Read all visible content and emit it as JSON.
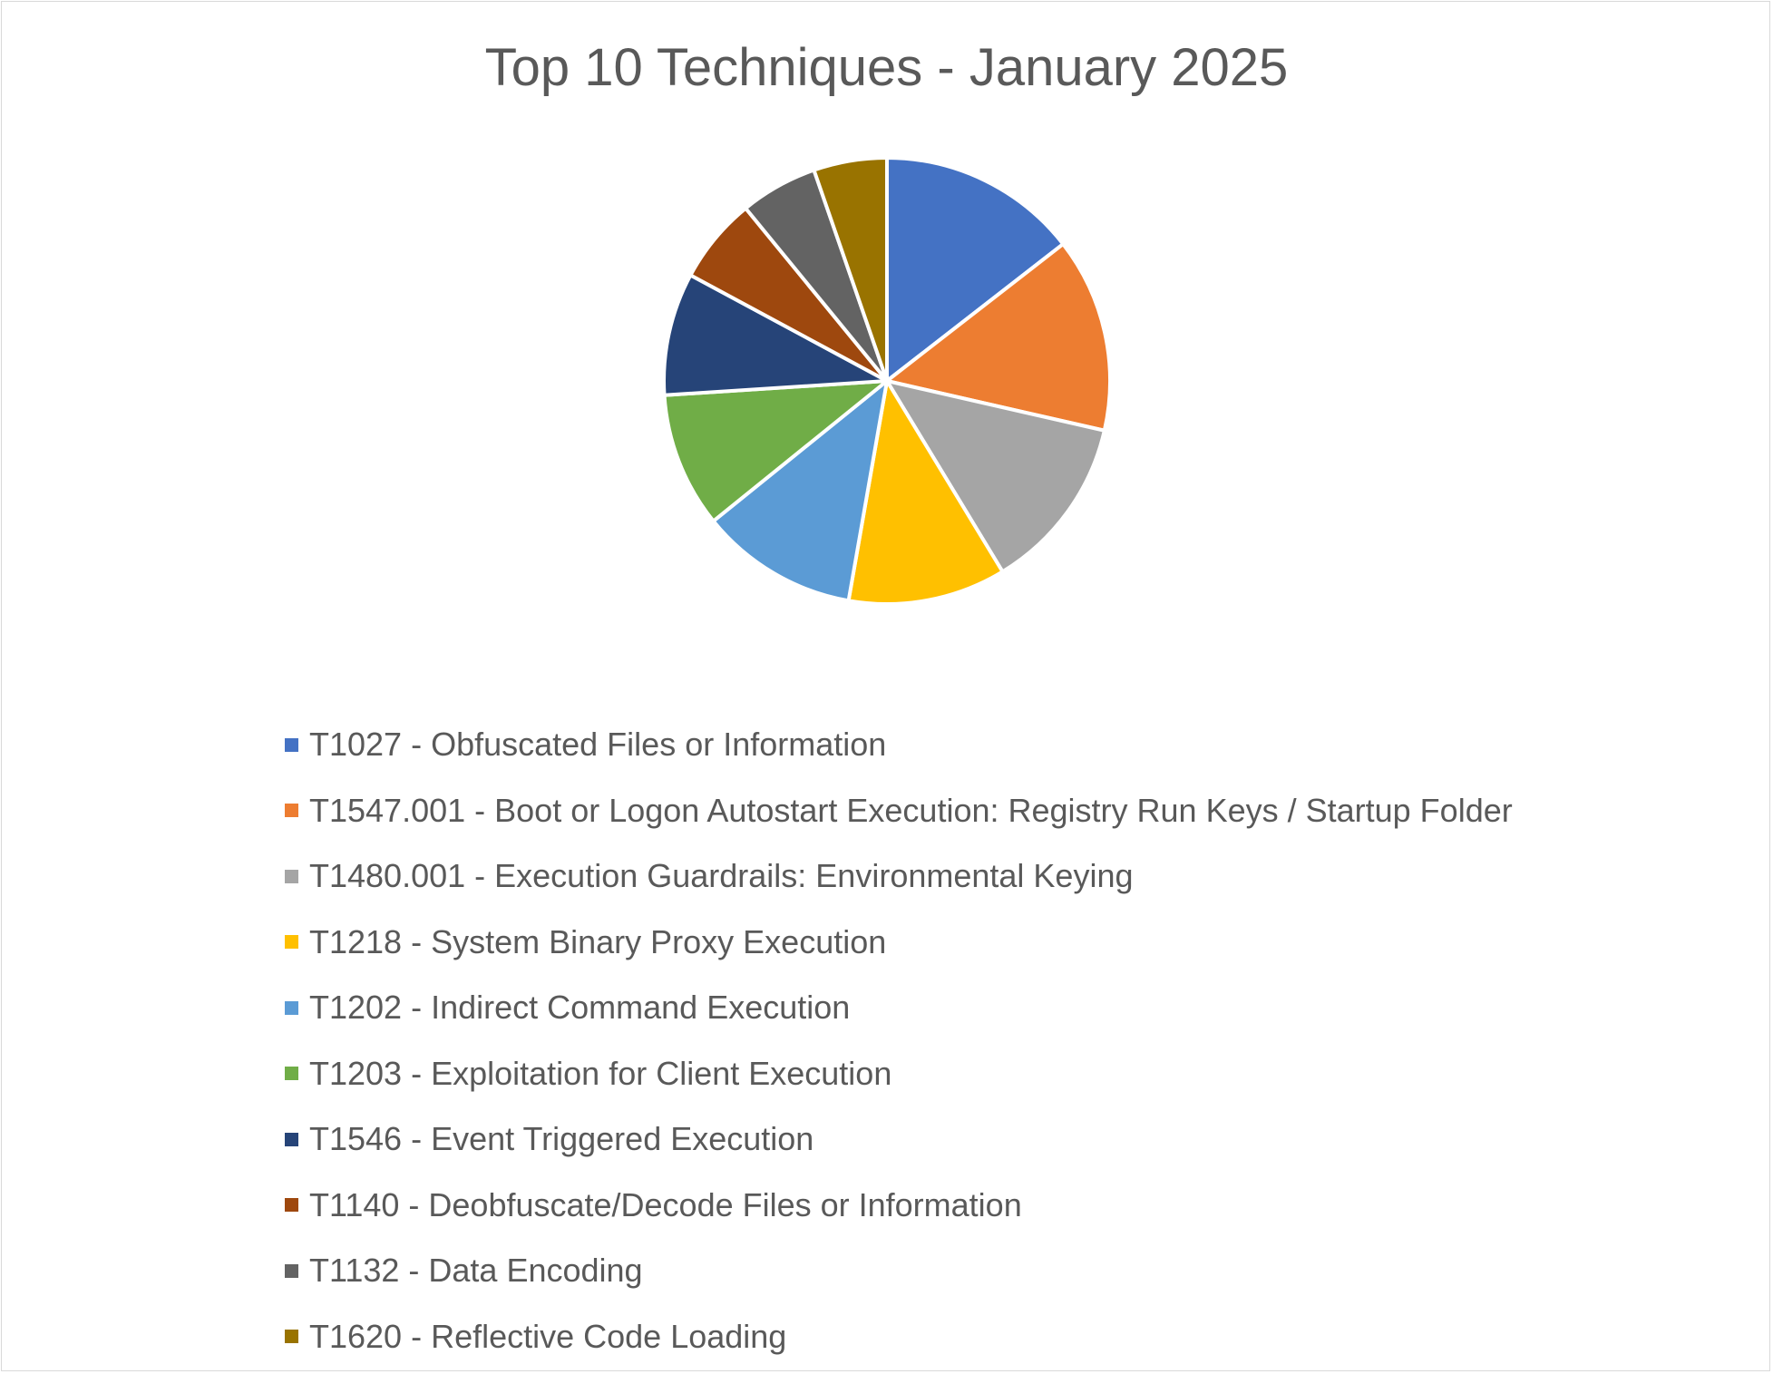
{
  "chart_data": {
    "type": "pie",
    "title": "Top 10 Techniques - January 2025",
    "categories": [
      "T1027 - Obfuscated Files or Information",
      "T1547.001 - Boot or Logon Autostart Execution: Registry Run Keys / Startup Folder",
      "T1480.001 - Execution Guardrails: Environmental Keying",
      "T1218 - System Binary Proxy Execution",
      "T1202 - Indirect Command Execution",
      "T1203 - Exploitation for Client Execution",
      "T1546 - Event Triggered Execution",
      "T1140 - Deobfuscate/Decode Files or Information",
      "T1132 - Data Encoding",
      "T1620 - Reflective Code Loading"
    ],
    "values": [
      14.2,
      13.8,
      12.5,
      11.2,
      11.2,
      9.6,
      8.7,
      6.1,
      5.5,
      5.2
    ],
    "colors": [
      "#4472c4",
      "#ed7d31",
      "#a5a5a5",
      "#ffc000",
      "#5b9bd5",
      "#70ad47",
      "#264478",
      "#9e480e",
      "#636363",
      "#997300"
    ],
    "legend_position": "bottom",
    "data_labels": false
  }
}
